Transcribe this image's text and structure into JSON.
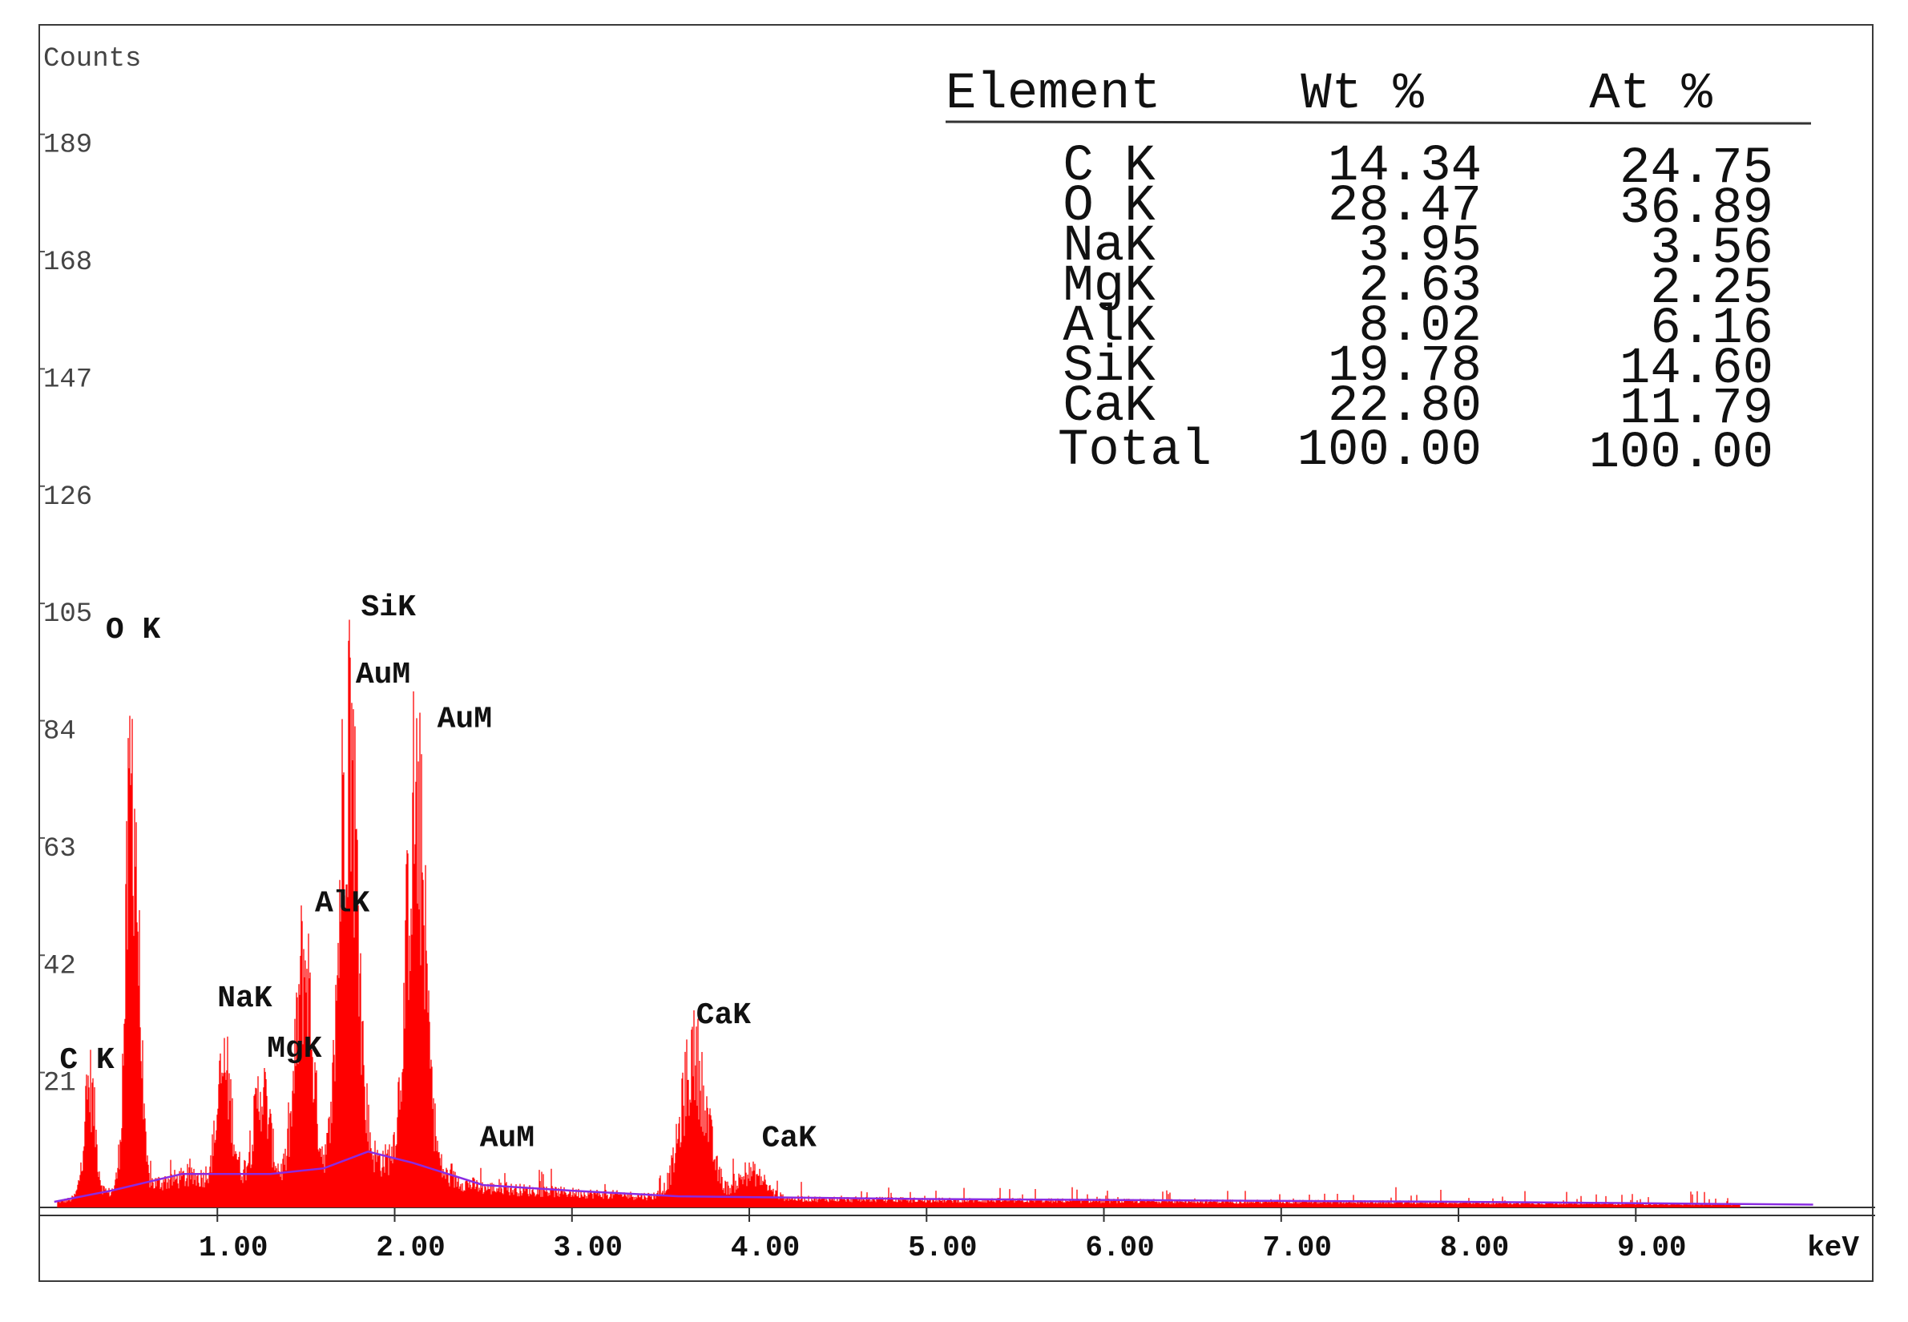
{
  "chart_data": {
    "type": "bar",
    "ylabel": "Counts",
    "xlabel": "keV",
    "xlim": [
      0,
      10.35
    ],
    "ylim": [
      0,
      210
    ],
    "y_ticks": [
      21,
      42,
      63,
      84,
      105,
      126,
      147,
      168,
      189
    ],
    "x_ticks": [
      "1.00",
      "2.00",
      "3.00",
      "4.00",
      "5.00",
      "6.00",
      "7.00",
      "8.00",
      "9.00"
    ],
    "bar_color": "#ff0000",
    "background_color": "#8a2be2",
    "peaks": [
      {
        "name": "C K",
        "energy": 0.28,
        "counts": 25
      },
      {
        "name": "O K",
        "energy": 0.52,
        "counts": 88
      },
      {
        "name": "NaK",
        "energy": 1.04,
        "counts": 28
      },
      {
        "name": "MgK",
        "energy": 1.25,
        "counts": 24
      },
      {
        "name": "AlK",
        "energy": 1.49,
        "counts": 50
      },
      {
        "name": "SiK",
        "energy": 1.74,
        "counts": 100
      },
      {
        "name": "AuM",
        "energy": 2.12,
        "counts": 82
      },
      {
        "name": "CaK",
        "energy": 3.69,
        "counts": 30
      },
      {
        "name": "CaK",
        "energy": 4.01,
        "counts": 7
      }
    ],
    "peak_labels": [
      {
        "text": "C K",
        "energy": 0.11,
        "counts": 25
      },
      {
        "text": "O K",
        "energy": 0.37,
        "counts": 102
      },
      {
        "text": "NaK",
        "energy": 1.0,
        "counts": 36
      },
      {
        "text": "MgK",
        "energy": 1.28,
        "counts": 27
      },
      {
        "text": "AlK",
        "energy": 1.55,
        "counts": 53
      },
      {
        "text": "SiK",
        "energy": 1.81,
        "counts": 106
      },
      {
        "text": "AuM",
        "energy": 1.78,
        "counts": 94
      },
      {
        "text": "AuM",
        "energy": 2.24,
        "counts": 86
      },
      {
        "text": "AuM",
        "energy": 2.48,
        "counts": 11
      },
      {
        "text": "CaK",
        "energy": 3.7,
        "counts": 33
      },
      {
        "text": "CaK",
        "energy": 4.07,
        "counts": 11
      }
    ],
    "background": [
      {
        "energy": 0.08,
        "counts": 1
      },
      {
        "energy": 0.4,
        "counts": 3
      },
      {
        "energy": 0.8,
        "counts": 6
      },
      {
        "energy": 1.3,
        "counts": 6
      },
      {
        "energy": 1.6,
        "counts": 7
      },
      {
        "energy": 1.85,
        "counts": 10
      },
      {
        "energy": 2.1,
        "counts": 8
      },
      {
        "energy": 2.5,
        "counts": 4
      },
      {
        "energy": 3.0,
        "counts": 3
      },
      {
        "energy": 3.6,
        "counts": 2
      },
      {
        "energy": 5.0,
        "counts": 1.5
      },
      {
        "energy": 8.0,
        "counts": 1
      },
      {
        "energy": 10.0,
        "counts": 0.5
      }
    ],
    "table": {
      "headers": [
        "Element",
        "Wt %",
        "At %"
      ],
      "rows": [
        [
          "C K",
          "14.34",
          "24.75"
        ],
        [
          "O K",
          "28.47",
          "36.89"
        ],
        [
          "NaK",
          "3.95",
          "3.56"
        ],
        [
          "MgK",
          "2.63",
          "2.25"
        ],
        [
          "AlK",
          "8.02",
          "6.16"
        ],
        [
          "SiK",
          "19.78",
          "14.60"
        ],
        [
          "CaK",
          "22.80",
          "11.79"
        ],
        [
          "Total",
          "100.00",
          "100.00"
        ]
      ]
    }
  }
}
